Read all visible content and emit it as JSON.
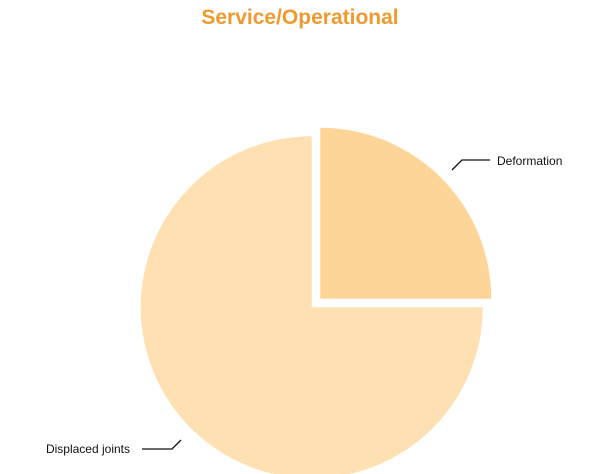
{
  "chart_data": {
    "type": "pie",
    "title": "Service/Operational",
    "slices": [
      {
        "label": "Deformation",
        "value": 25,
        "color": "#fed598"
      },
      {
        "label": "Displaced joints",
        "value": 75,
        "color": "#fee0b3"
      }
    ],
    "exploded": true,
    "start_direction": "top-clockwise"
  }
}
